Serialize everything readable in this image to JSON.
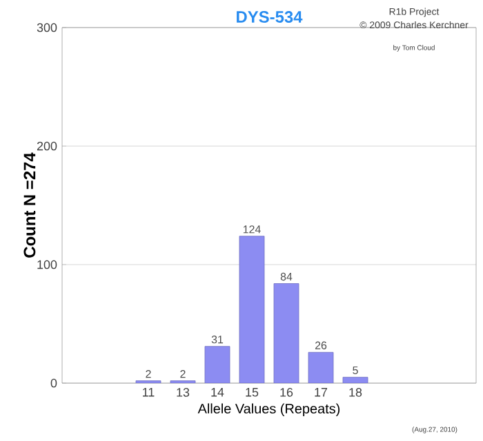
{
  "chart_data": {
    "type": "bar",
    "title": "DYS-534",
    "xlabel": "Allele Values (Repeats)",
    "ylabel": "Count N =274",
    "categories": [
      null,
      null,
      "11",
      "13",
      "14",
      "15",
      "16",
      "17",
      "18",
      null,
      null,
      null
    ],
    "values": [
      null,
      null,
      2,
      2,
      31,
      124,
      84,
      26,
      5,
      null,
      null,
      null
    ],
    "color": "#8c8cf2",
    "ylim": [
      0,
      300
    ],
    "yticks": [
      0,
      100,
      200,
      300
    ],
    "grid": "y",
    "data_labels": true,
    "annotations": [
      "R1b Project",
      "© 2009 Charles Kerchner",
      "by Tom Cloud",
      "(Aug.27, 2010)"
    ]
  }
}
